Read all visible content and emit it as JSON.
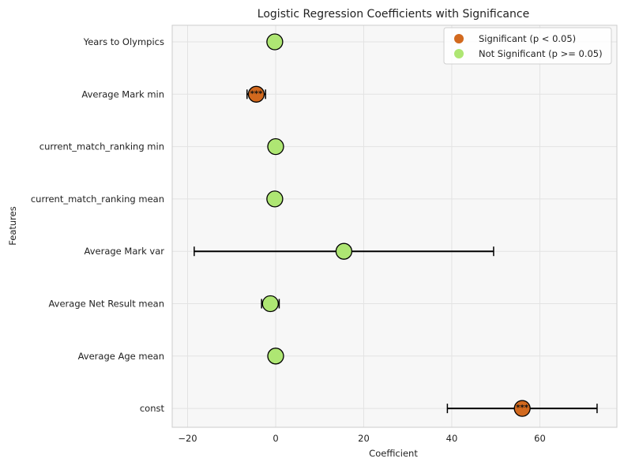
{
  "chart_data": {
    "type": "scatter",
    "title": "Logistic Regression Coefficients with Significance",
    "xlabel": "Coefficient",
    "ylabel": "Features",
    "xlim": [
      -23.5,
      77.5
    ],
    "xticks": [
      -20,
      0,
      20,
      40,
      60
    ],
    "grid": true,
    "legend_placement": "top-right",
    "colors": {
      "significant": "#d2691e",
      "not_significant": "#aee673",
      "background": "#f7f7f7",
      "grid": "#e3e3e3"
    },
    "legend": [
      {
        "key": "significant",
        "label": "Significant (p < 0.05)"
      },
      {
        "key": "not_significant",
        "label": "Not Significant (p >= 0.05)"
      }
    ],
    "points": [
      {
        "feature": "Years to Olympics",
        "coef": -0.2,
        "low": -0.2,
        "high": -0.2,
        "significant": false,
        "stars": ""
      },
      {
        "feature": "Average Mark min",
        "coef": -4.4,
        "low": -6.5,
        "high": -2.3,
        "significant": true,
        "stars": "***"
      },
      {
        "feature": "current_match_ranking min",
        "coef": 0.0,
        "low": 0.0,
        "high": 0.0,
        "significant": false,
        "stars": ""
      },
      {
        "feature": "current_match_ranking mean",
        "coef": -0.2,
        "low": -0.2,
        "high": -0.2,
        "significant": false,
        "stars": ""
      },
      {
        "feature": "Average Mark var",
        "coef": 15.5,
        "low": -18.5,
        "high": 49.5,
        "significant": false,
        "stars": ""
      },
      {
        "feature": "Average Net Result mean",
        "coef": -1.2,
        "low": -3.2,
        "high": 0.8,
        "significant": false,
        "stars": ""
      },
      {
        "feature": "Average Age mean",
        "coef": 0.0,
        "low": 0.0,
        "high": 0.0,
        "significant": false,
        "stars": ""
      },
      {
        "feature": "const",
        "coef": 56.0,
        "low": 39.0,
        "high": 73.0,
        "significant": true,
        "stars": "***"
      }
    ]
  }
}
